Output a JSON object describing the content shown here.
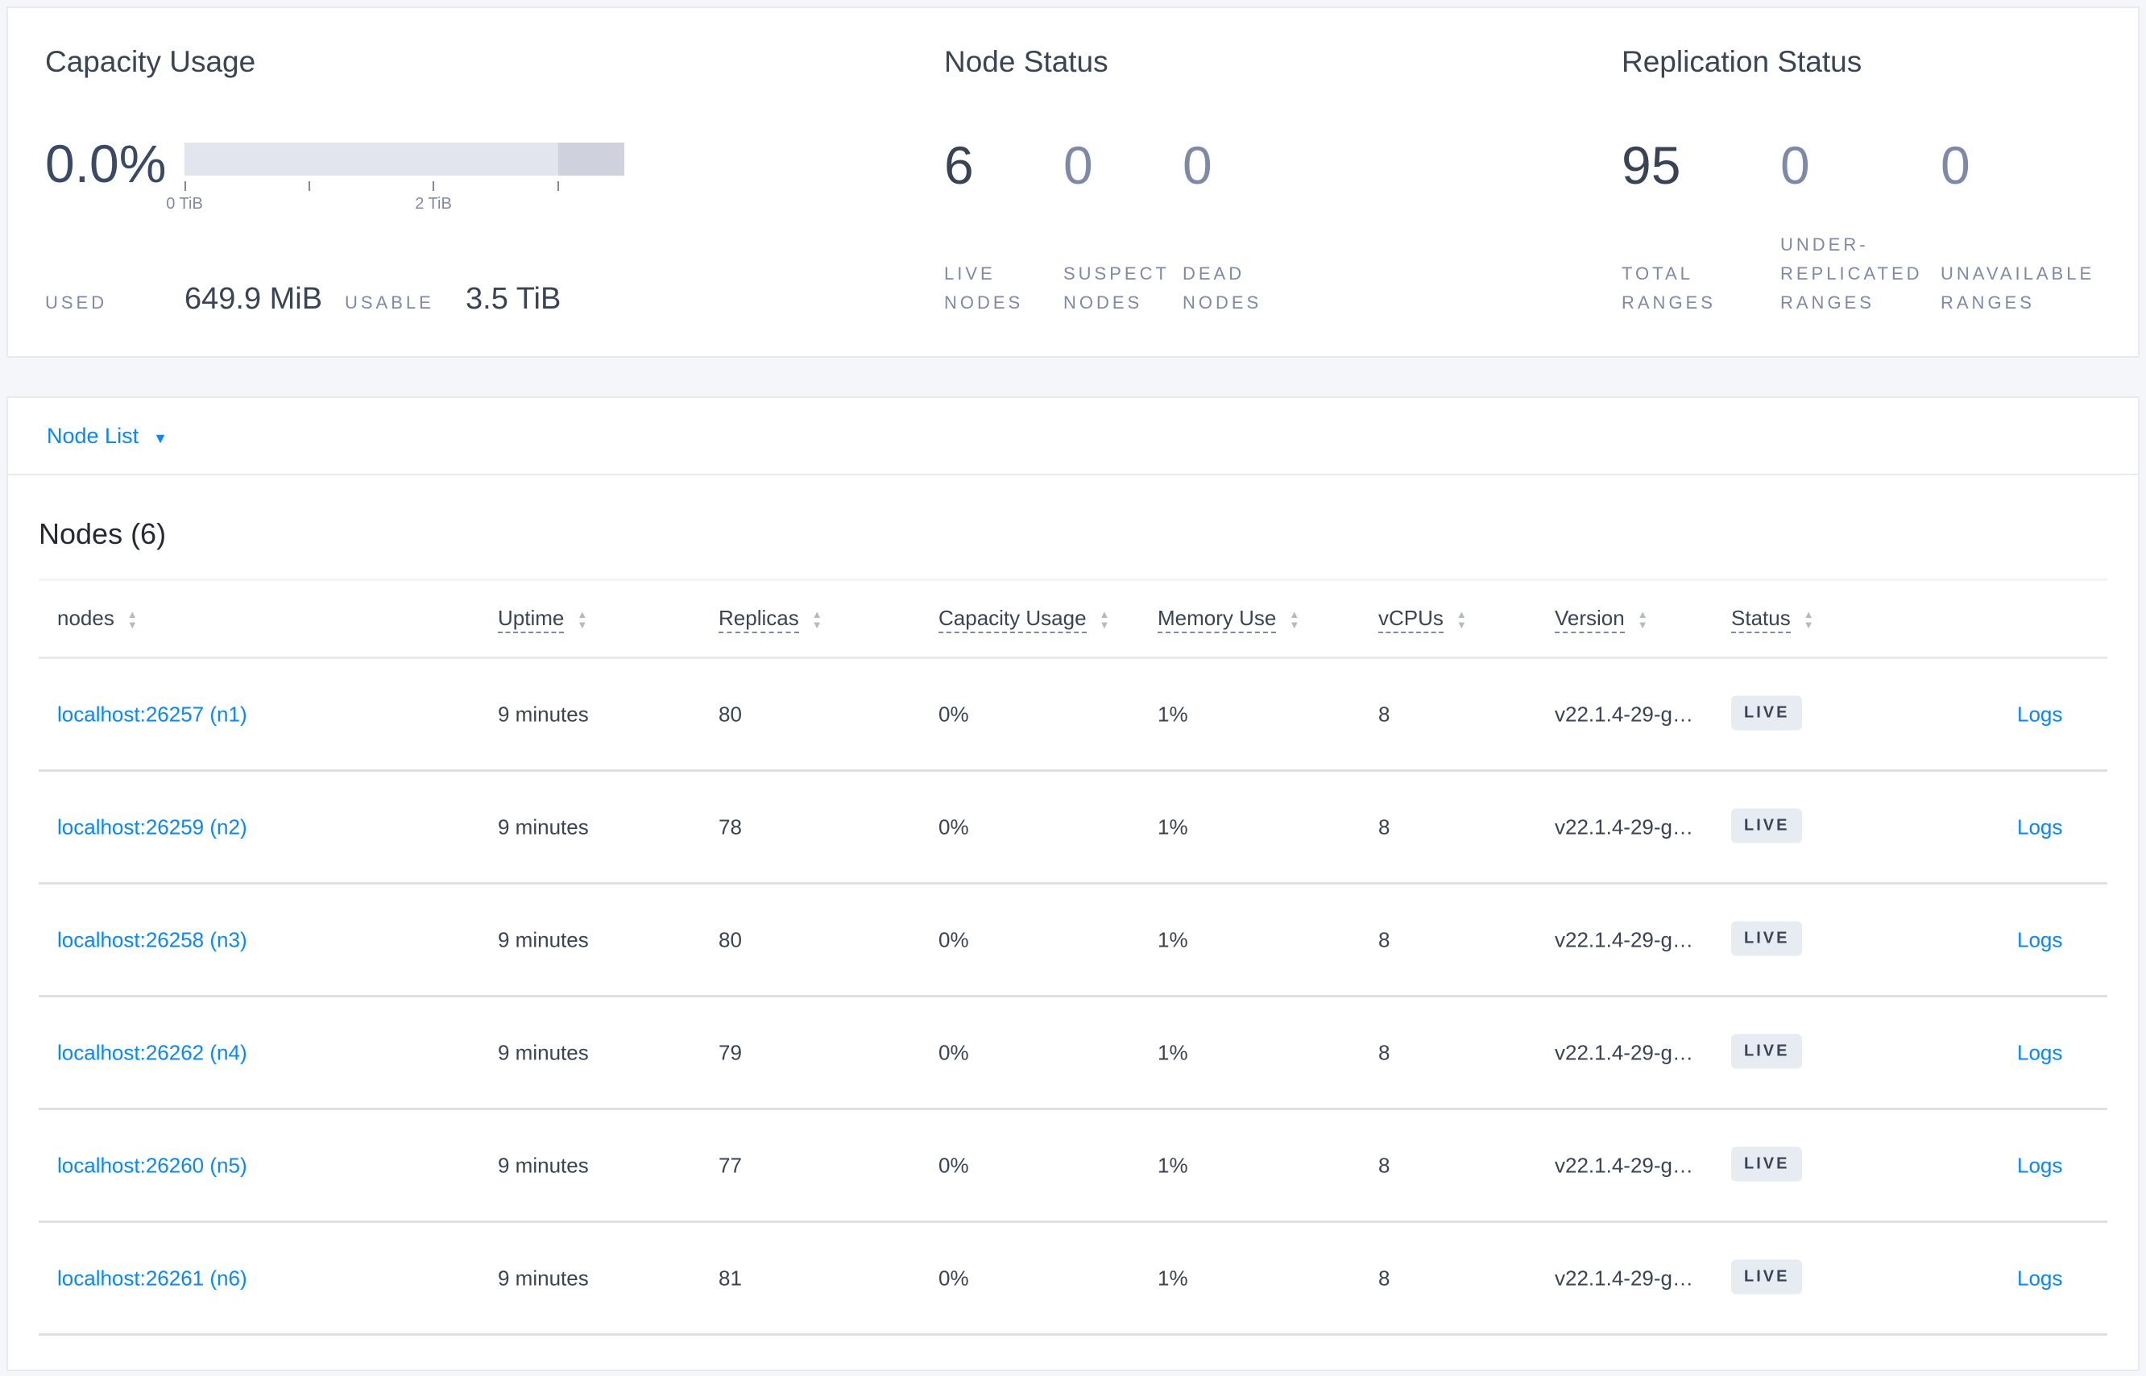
{
  "capacity": {
    "title": "Capacity Usage",
    "percent": "0.0%",
    "usage_fraction": 0.0,
    "ticks": [
      "0 TiB",
      "2 TiB"
    ],
    "used_label": "USED",
    "used_value": "649.9 MiB",
    "usable_label": "USABLE",
    "usable_value": "3.5 TiB"
  },
  "node_status": {
    "title": "Node Status",
    "stats": [
      {
        "value": "6",
        "label1": "LIVE",
        "label2": "NODES"
      },
      {
        "value": "0",
        "label1": "SUSPECT",
        "label2": "NODES"
      },
      {
        "value": "0",
        "label1": "DEAD",
        "label2": "NODES"
      }
    ]
  },
  "replication": {
    "title": "Replication Status",
    "stats": [
      {
        "value": "95",
        "label0": "",
        "label1": "TOTAL",
        "label2": "RANGES"
      },
      {
        "value": "0",
        "label0": "UNDER-",
        "label1": "REPLICATED",
        "label2": "RANGES"
      },
      {
        "value": "0",
        "label0": "",
        "label1": "UNAVAILABLE",
        "label2": "RANGES"
      }
    ]
  },
  "view_selector": {
    "label": "Node List"
  },
  "table": {
    "title": "Nodes (6)",
    "columns": [
      "nodes",
      "Uptime",
      "Replicas",
      "Capacity Usage",
      "Memory Use",
      "vCPUs",
      "Version",
      "Status"
    ],
    "rows": [
      {
        "node": "localhost:26257 (n1)",
        "uptime": "9 minutes",
        "replicas": "80",
        "capacity": "0%",
        "memory": "1%",
        "vcpus": "8",
        "version": "v22.1.4-29-g…",
        "status": "LIVE",
        "logs": "Logs"
      },
      {
        "node": "localhost:26259 (n2)",
        "uptime": "9 minutes",
        "replicas": "78",
        "capacity": "0%",
        "memory": "1%",
        "vcpus": "8",
        "version": "v22.1.4-29-g…",
        "status": "LIVE",
        "logs": "Logs"
      },
      {
        "node": "localhost:26258 (n3)",
        "uptime": "9 minutes",
        "replicas": "80",
        "capacity": "0%",
        "memory": "1%",
        "vcpus": "8",
        "version": "v22.1.4-29-g…",
        "status": "LIVE",
        "logs": "Logs"
      },
      {
        "node": "localhost:26262 (n4)",
        "uptime": "9 minutes",
        "replicas": "79",
        "capacity": "0%",
        "memory": "1%",
        "vcpus": "8",
        "version": "v22.1.4-29-g…",
        "status": "LIVE",
        "logs": "Logs"
      },
      {
        "node": "localhost:26260 (n5)",
        "uptime": "9 minutes",
        "replicas": "77",
        "capacity": "0%",
        "memory": "1%",
        "vcpus": "8",
        "version": "v22.1.4-29-g…",
        "status": "LIVE",
        "logs": "Logs"
      },
      {
        "node": "localhost:26261 (n6)",
        "uptime": "9 minutes",
        "replicas": "81",
        "capacity": "0%",
        "memory": "1%",
        "vcpus": "8",
        "version": "v22.1.4-29-g…",
        "status": "LIVE",
        "logs": "Logs"
      }
    ]
  },
  "colors": {
    "link": "#0788ff",
    "text": "#394455",
    "muted": "#7e89a9",
    "badge_bg": "#e7ecf3"
  }
}
